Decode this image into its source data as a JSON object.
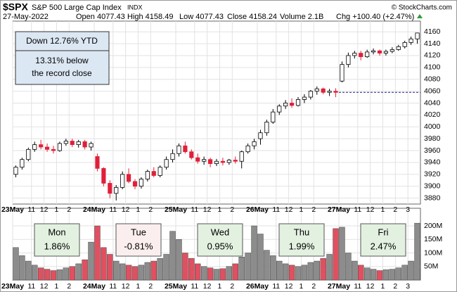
{
  "header": {
    "symbol": "$SPX",
    "name": "S&P 500 Large Cap Index",
    "exchange": "INDX",
    "date": "27-May-2022",
    "stats": [
      "Open 4077.43",
      "High 4158.49",
      "Low 4077.43",
      "Close 4158.24",
      "Volume 2.1B",
      "Chg +100.40 (+2.47%)"
    ],
    "credit": "© StockCharts.com"
  },
  "annotations": {
    "ytd": "Down 12.76% YTD",
    "record": [
      "13.31% below",
      "the record close"
    ]
  },
  "day_changes": [
    {
      "day": "Mon",
      "change": "1.86%",
      "color": "#2e9b3a",
      "box": "#e3f1e1"
    },
    {
      "day": "Tue",
      "change": "-0.81%",
      "color": "#d01818",
      "box": "#fbeeee"
    },
    {
      "day": "Wed",
      "change": "0.95%",
      "color": "#2e9b3a",
      "box": "#e3f1e1"
    },
    {
      "day": "Thu",
      "change": "1.99%",
      "color": "#2e9b3a",
      "box": "#e3f1e1"
    },
    {
      "day": "Fri",
      "change": "2.47%",
      "color": "#2e9b3a",
      "box": "#e3f1e1"
    }
  ],
  "chart_data": {
    "type": "candlestick",
    "up_color": "#ffffff",
    "down_color": "#e0203a",
    "volume_up_color": "#8c8c8c",
    "volume_down_color": "#e05060",
    "categories": [
      "23May",
      null,
      null,
      "11",
      null,
      "12",
      null,
      "1",
      null,
      "2",
      null,
      null,
      null,
      "24May",
      null,
      null,
      "11",
      null,
      "12",
      null,
      "1",
      null,
      "2",
      null,
      null,
      null,
      "25May",
      null,
      null,
      "11",
      null,
      "12",
      null,
      "1",
      null,
      "2",
      null,
      null,
      null,
      "26May",
      null,
      null,
      "11",
      null,
      "12",
      null,
      "1",
      null,
      "2",
      null,
      null,
      null,
      "27May",
      null,
      null,
      "11",
      null,
      "12",
      null,
      "1",
      null,
      "2",
      null,
      "3",
      null
    ],
    "open": [
      3920,
      3932,
      3945,
      3962,
      3970,
      3966,
      3962,
      3960,
      3972,
      3976,
      3970,
      3975,
      3966,
      3950,
      3930,
      3905,
      3888,
      3898,
      3920,
      3908,
      3900,
      3912,
      3925,
      3918,
      3932,
      3945,
      3955,
      3968,
      3958,
      3948,
      3942,
      3945,
      3938,
      3942,
      3940,
      3944,
      3942,
      3958,
      3968,
      3980,
      3990,
      4008,
      4025,
      4035,
      4040,
      4036,
      4046,
      4050,
      4060,
      4064,
      4058,
      4060,
      4077,
      4105,
      4120,
      4124,
      4118,
      4126,
      4128,
      4124,
      4127,
      4130,
      4135,
      4142,
      4148
    ],
    "high": [
      3935,
      3948,
      3965,
      3975,
      3978,
      3972,
      3968,
      3975,
      3980,
      3980,
      3978,
      3978,
      3975,
      3955,
      3932,
      3910,
      3902,
      3925,
      3930,
      3912,
      3915,
      3928,
      3932,
      3935,
      3950,
      3962,
      3972,
      3975,
      3962,
      3955,
      3950,
      3948,
      3946,
      3948,
      3946,
      3950,
      3960,
      3972,
      3980,
      3995,
      4012,
      4030,
      4038,
      4045,
      4048,
      4050,
      4055,
      4062,
      4068,
      4066,
      4064,
      4065,
      4110,
      4125,
      4128,
      4128,
      4130,
      4132,
      4130,
      4130,
      4134,
      4138,
      4145,
      4152,
      4158
    ],
    "low": [
      3915,
      3928,
      3942,
      3958,
      3962,
      3958,
      3955,
      3958,
      3968,
      3966,
      3965,
      3962,
      3960,
      3925,
      3900,
      3880,
      3876,
      3895,
      3905,
      3895,
      3896,
      3908,
      3915,
      3915,
      3928,
      3940,
      3950,
      3955,
      3945,
      3938,
      3936,
      3932,
      3934,
      3935,
      3936,
      3938,
      3930,
      3955,
      3962,
      3970,
      3985,
      4005,
      4020,
      4030,
      4032,
      4034,
      4040,
      4046,
      4054,
      4055,
      4052,
      4050,
      4075,
      4100,
      4115,
      4112,
      4116,
      4122,
      4120,
      4120,
      4124,
      4128,
      4132,
      4138,
      4140
    ],
    "close": [
      3932,
      3945,
      3962,
      3970,
      3966,
      3962,
      3960,
      3972,
      3976,
      3970,
      3975,
      3966,
      3972,
      3930,
      3905,
      3888,
      3898,
      3920,
      3908,
      3900,
      3912,
      3925,
      3918,
      3932,
      3945,
      3955,
      3968,
      3958,
      3948,
      3942,
      3945,
      3938,
      3942,
      3940,
      3944,
      3942,
      3958,
      3968,
      3975,
      3990,
      4008,
      4025,
      4035,
      4040,
      4036,
      4046,
      4050,
      4060,
      4064,
      4058,
      4060,
      4058,
      4105,
      4120,
      4124,
      4118,
      4126,
      4128,
      4124,
      4127,
      4130,
      4135,
      4142,
      4148,
      4158
    ],
    "volume": [
      120,
      90,
      70,
      55,
      45,
      40,
      35,
      38,
      45,
      50,
      60,
      75,
      140,
      200,
      120,
      95,
      70,
      60,
      55,
      50,
      55,
      65,
      70,
      80,
      95,
      180,
      150,
      100,
      80,
      60,
      50,
      45,
      40,
      42,
      50,
      60,
      85,
      100,
      200,
      170,
      110,
      90,
      70,
      60,
      55,
      50,
      55,
      65,
      70,
      80,
      95,
      190,
      195,
      100,
      70,
      55,
      45,
      40,
      35,
      38,
      40,
      45,
      55,
      70,
      210
    ],
    "ylim": [
      3870,
      4178
    ],
    "yticks": [
      3880,
      3900,
      3920,
      3940,
      3960,
      3980,
      4000,
      4020,
      4040,
      4060,
      4080,
      4100,
      4120,
      4140,
      4160
    ],
    "reference_line": 4058,
    "volume_ylim": [
      0,
      265
    ],
    "volume_yticks": [
      {
        "value": 50,
        "label": "50M"
      },
      {
        "value": 100,
        "label": "100M"
      },
      {
        "value": 150,
        "label": "150M"
      },
      {
        "value": 200,
        "label": "200M"
      }
    ]
  }
}
